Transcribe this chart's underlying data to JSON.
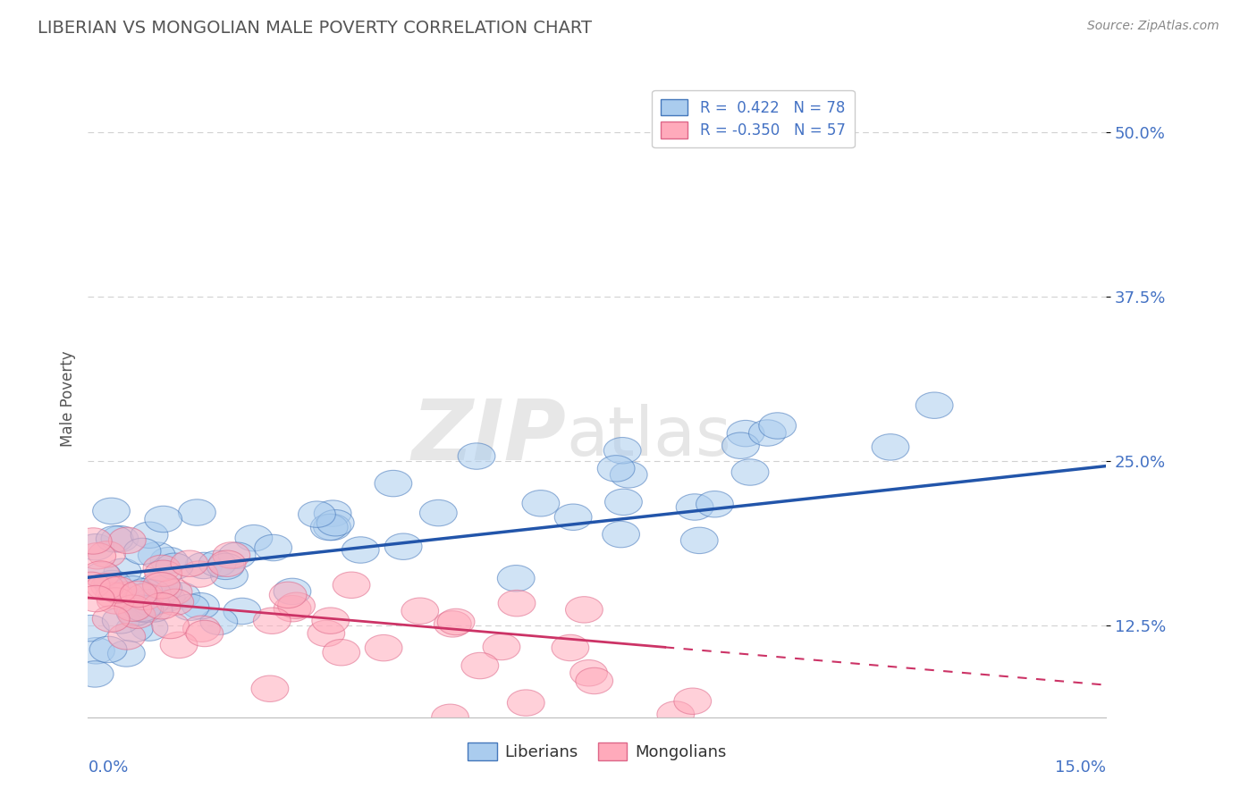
{
  "title": "LIBERIAN VS MONGOLIAN MALE POVERTY CORRELATION CHART",
  "source": "Source: ZipAtlas.com",
  "ylabel": "Male Poverty",
  "xmin": 0.0,
  "xmax": 0.15,
  "ymin": 0.055,
  "ymax": 0.54,
  "yticks": [
    0.125,
    0.25,
    0.375,
    0.5
  ],
  "ytick_labels": [
    "12.5%",
    "25.0%",
    "37.5%",
    "50.0%"
  ],
  "liberian_R": 0.422,
  "liberian_N": 78,
  "mongolian_R": -0.35,
  "mongolian_N": 57,
  "blue_fill": "#aaccee",
  "blue_edge": "#4477bb",
  "blue_line": "#2255aa",
  "pink_fill": "#ffaabb",
  "pink_edge": "#dd6688",
  "pink_line": "#cc3366",
  "legend_blue_label": "R =  0.422   N = 78",
  "legend_pink_label": "R = -0.350   N = 57",
  "liberians_label": "Liberians",
  "mongolians_label": "Mongolians",
  "title_color": "#555555",
  "axis_label_color": "#4472c4",
  "background_color": "#ffffff",
  "grid_color": "#cccccc",
  "watermark": "ZIPatlas",
  "watermark_zip_color": "#cccccc",
  "watermark_atlas_color": "#bbbbbb"
}
